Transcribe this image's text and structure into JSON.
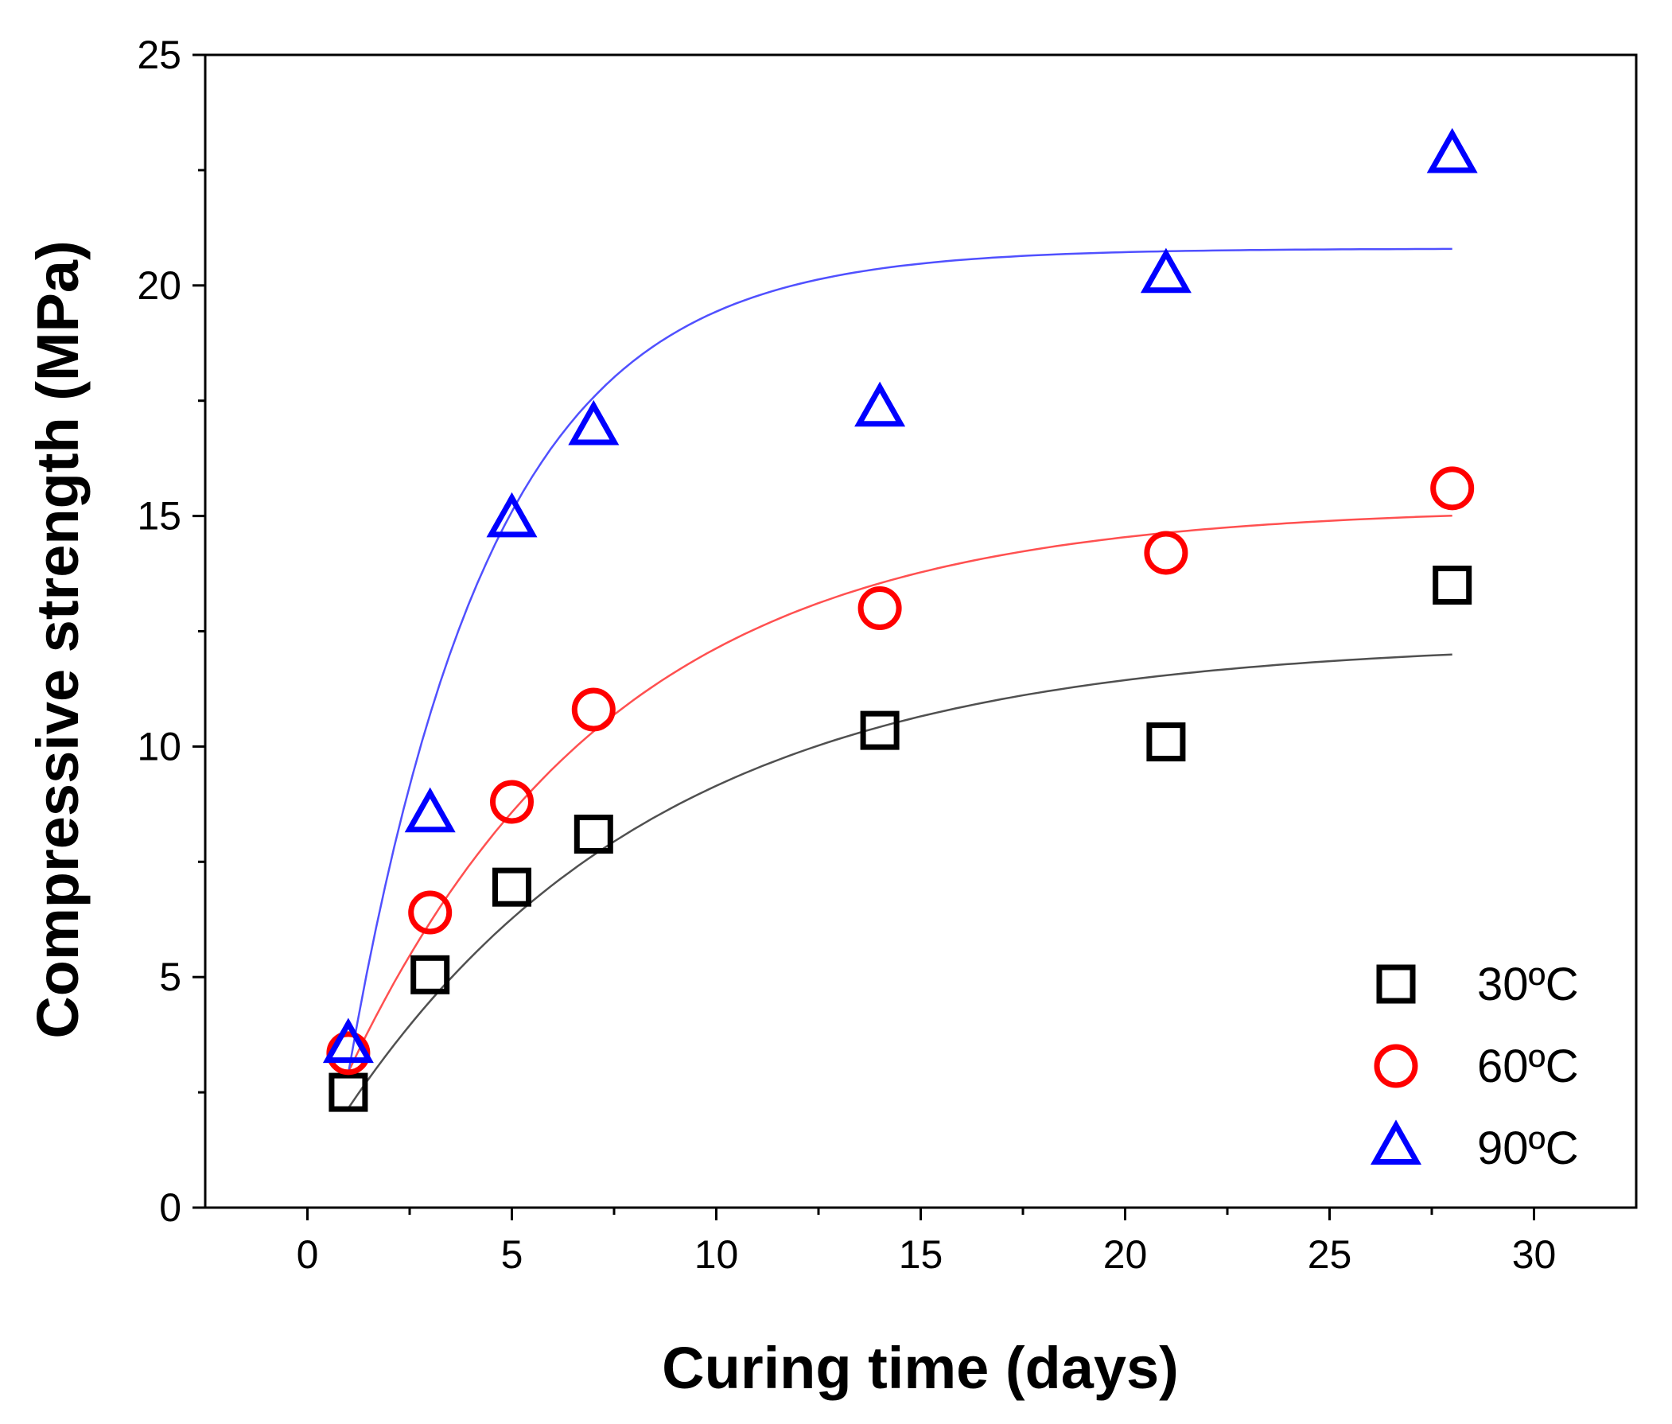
{
  "chart_data": {
    "type": "scatter",
    "xlabel": "Curing time (days)",
    "ylabel": "Compressive strength (MPa)",
    "xlim": [
      -2.5,
      32.5
    ],
    "ylim": [
      0,
      25
    ],
    "x_ticks": [
      0,
      5,
      10,
      15,
      20,
      25,
      30
    ],
    "x_tick_labels": [
      "0",
      "5",
      "10",
      "15",
      "20",
      "25",
      "30"
    ],
    "y_ticks": [
      0,
      5,
      10,
      15,
      20,
      25
    ],
    "y_tick_labels": [
      "0",
      "5",
      "10",
      "15",
      "20",
      "25"
    ],
    "grid": false,
    "legend_position": "bottom-right",
    "series": [
      {
        "name": "30ºC",
        "marker": "square",
        "color": "#000000",
        "fit_color": "#505050",
        "x": [
          1,
          3,
          5,
          7,
          14,
          21,
          28
        ],
        "y": [
          2.5,
          5.05,
          6.95,
          8.1,
          10.35,
          10.1,
          13.5
        ],
        "fit": {
          "model": "y = a - b*exp(-x/t)",
          "a": 12.3,
          "b": 11.55,
          "t": 7.7,
          "x_range": [
            1,
            28
          ]
        }
      },
      {
        "name": "60ºC",
        "marker": "circle",
        "color": "#ff0000",
        "fit_color": "#ff5050",
        "x": [
          1,
          3,
          5,
          7,
          14,
          21,
          28
        ],
        "y": [
          3.35,
          6.4,
          8.8,
          10.8,
          13.0,
          14.2,
          15.6
        ],
        "fit": {
          "model": "y = a - b*exp(-x/t)",
          "a": 15.2,
          "b": 14.3,
          "t": 6.5,
          "x_range": [
            1,
            28
          ]
        }
      },
      {
        "name": "90ºC",
        "marker": "triangle",
        "color": "#0000ff",
        "fit_color": "#5050ff",
        "x": [
          1,
          3,
          5,
          7,
          14,
          21,
          28
        ],
        "y": [
          3.5,
          8.5,
          14.9,
          16.9,
          17.3,
          20.2,
          22.8
        ],
        "fit": {
          "model": "y = a - b*exp(-x/t)",
          "a": 20.8,
          "b": 23.8,
          "t": 3.5,
          "x_range": [
            1,
            28
          ]
        }
      }
    ]
  }
}
